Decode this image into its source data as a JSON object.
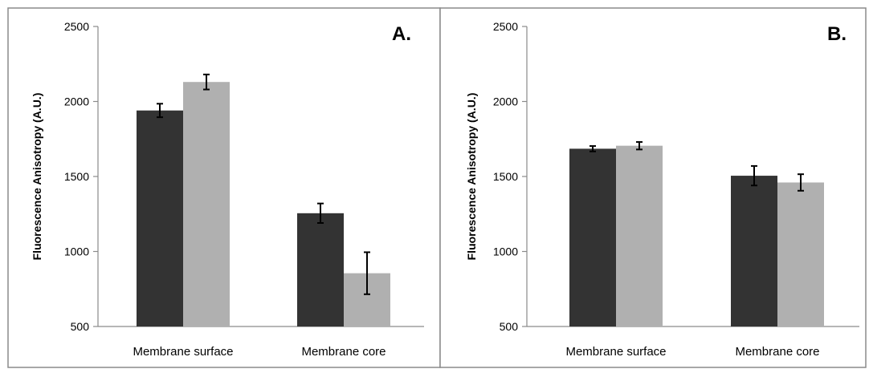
{
  "chart_data": [
    {
      "type": "bar",
      "panel_label": "A.",
      "ylabel": "Fluorescence Anisotropy (A.U.)",
      "xlabel": "",
      "ylim": [
        500,
        2500
      ],
      "yticks": [
        500,
        1000,
        1500,
        2000,
        2500
      ],
      "categories": [
        "Membrane surface",
        "Membrane core"
      ],
      "series": [
        {
          "color": "#333333",
          "values": [
            1940,
            1255
          ],
          "errors": [
            45,
            65
          ]
        },
        {
          "color": "#b0b0b0",
          "values": [
            2130,
            855
          ],
          "errors": [
            50,
            140
          ]
        }
      ],
      "grid": false
    },
    {
      "type": "bar",
      "panel_label": "B.",
      "ylabel": "Fluorescence Anisotropy (A.U.)",
      "xlabel": "",
      "ylim": [
        500,
        2500
      ],
      "yticks": [
        500,
        1000,
        1500,
        2000,
        2500
      ],
      "categories": [
        "Membrane surface",
        "Membrane core"
      ],
      "series": [
        {
          "color": "#333333",
          "values": [
            1685,
            1505
          ],
          "errors": [
            18,
            65
          ]
        },
        {
          "color": "#b0b0b0",
          "values": [
            1705,
            1460
          ],
          "errors": [
            25,
            55
          ]
        }
      ],
      "grid": false
    }
  ]
}
